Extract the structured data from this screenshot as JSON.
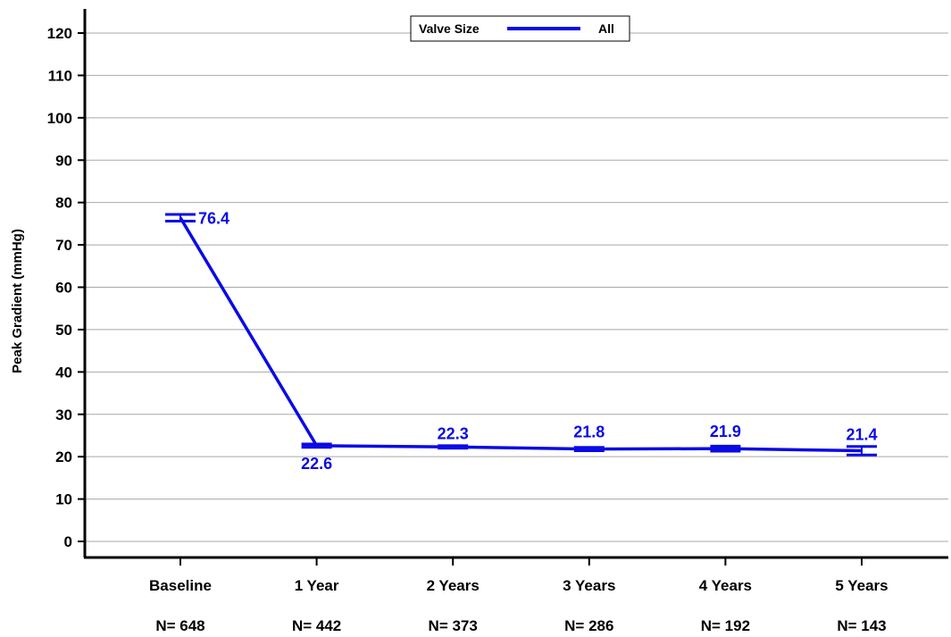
{
  "chart_data": {
    "type": "line",
    "title": "",
    "ylabel": "Peak Gradient (mmHg)",
    "xlabel": "",
    "ylim": [
      0,
      120
    ],
    "yticks": [
      0,
      10,
      20,
      30,
      40,
      50,
      60,
      70,
      80,
      90,
      100,
      110,
      120
    ],
    "grid": true,
    "categories": [
      "Baseline",
      "1 Year",
      "2 Years",
      "3 Years",
      "4 Years",
      "5 Years"
    ],
    "n_labels": [
      "N= 648",
      "N= 442",
      "N= 373",
      "N= 286",
      "N= 192",
      "N= 143"
    ],
    "legend": {
      "title": "Valve Size",
      "placement": "top-center"
    },
    "series": [
      {
        "name": "All",
        "color": "#0a0ae6",
        "values": [
          76.4,
          22.6,
          22.3,
          21.8,
          21.9,
          21.4
        ],
        "value_labels": [
          "76.4",
          "22.6",
          "22.3",
          "21.8",
          "21.9",
          "21.4"
        ],
        "err_low": [
          75.6,
          22.1,
          21.9,
          21.3,
          21.3,
          20.4
        ],
        "err_high": [
          77.2,
          23.1,
          22.7,
          22.3,
          22.5,
          22.4
        ]
      }
    ]
  }
}
